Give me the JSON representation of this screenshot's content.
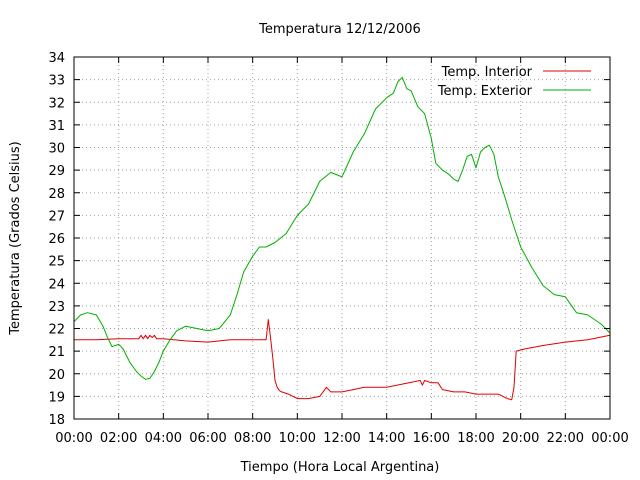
{
  "chart_data": {
    "type": "line",
    "title": "Temperatura 12/12/2006",
    "xlabel": "Tiempo (Hora Local Argentina)",
    "ylabel": "Temperatura (Grados Celsius)",
    "xlim": [
      0,
      24
    ],
    "ylim": [
      18,
      34
    ],
    "x_ticks": [
      0,
      2,
      4,
      6,
      8,
      10,
      12,
      14,
      16,
      18,
      20,
      22,
      24
    ],
    "x_tick_labels": [
      "00:00",
      "02:00",
      "04:00",
      "06:00",
      "08:00",
      "10:00",
      "12:00",
      "14:00",
      "16:00",
      "18:00",
      "20:00",
      "22:00",
      "00:00"
    ],
    "y_ticks": [
      18,
      19,
      20,
      21,
      22,
      23,
      24,
      25,
      26,
      27,
      28,
      29,
      30,
      31,
      32,
      33,
      34
    ],
    "y_tick_labels": [
      "18",
      "19",
      "20",
      "21",
      "22",
      "23",
      "24",
      "25",
      "26",
      "27",
      "28",
      "29",
      "30",
      "31",
      "32",
      "33",
      "34"
    ],
    "grid": true,
    "legend_position": "top-right",
    "series": [
      {
        "name": "Temp. Interior",
        "color": "#e00000",
        "x": [
          0,
          1,
          2,
          2.9,
          3,
          3.1,
          3.2,
          3.3,
          3.4,
          3.5,
          3.6,
          3.7,
          3.8,
          4,
          5,
          6,
          7,
          8,
          8.6,
          8.7,
          8.8,
          8.9,
          9.0,
          9.1,
          9.2,
          9.3,
          9.6,
          10,
          10.5,
          11,
          11.3,
          11.5,
          12,
          12.5,
          13,
          14,
          15,
          15.5,
          15.6,
          15.7,
          16,
          16.3,
          16.5,
          17,
          17.5,
          18,
          19,
          19.4,
          19.6,
          19.7,
          19.8,
          20.2,
          21,
          22,
          23,
          24
        ],
        "y": [
          21.5,
          21.5,
          21.55,
          21.55,
          21.7,
          21.55,
          21.7,
          21.55,
          21.7,
          21.6,
          21.7,
          21.55,
          21.55,
          21.55,
          21.45,
          21.4,
          21.5,
          21.5,
          21.5,
          22.4,
          21.6,
          20.7,
          19.7,
          19.4,
          19.25,
          19.2,
          19.1,
          18.9,
          18.9,
          19.0,
          19.4,
          19.2,
          19.2,
          19.3,
          19.4,
          19.4,
          19.6,
          19.7,
          19.5,
          19.7,
          19.6,
          19.6,
          19.3,
          19.2,
          19.2,
          19.1,
          19.1,
          18.9,
          18.85,
          19.4,
          21.0,
          21.1,
          21.25,
          21.4,
          21.5,
          21.7
        ]
      },
      {
        "name": "Temp. Exterior",
        "color": "#00b000",
        "x": [
          0,
          0.3,
          0.6,
          1.0,
          1.3,
          1.5,
          1.7,
          2.0,
          2.2,
          2.5,
          2.8,
          3.0,
          3.2,
          3.4,
          3.6,
          3.8,
          4.0,
          4.3,
          4.6,
          5.0,
          5.5,
          6.0,
          6.5,
          7.0,
          7.3,
          7.6,
          8.0,
          8.3,
          8.6,
          9.0,
          9.5,
          10.0,
          10.5,
          11.0,
          11.5,
          12.0,
          12.5,
          13.0,
          13.5,
          14.0,
          14.3,
          14.5,
          14.7,
          14.9,
          15.1,
          15.4,
          15.7,
          16.0,
          16.2,
          16.5,
          16.8,
          17.0,
          17.2,
          17.4,
          17.6,
          17.8,
          18.0,
          18.2,
          18.4,
          18.6,
          18.8,
          19.0,
          19.3,
          19.6,
          20.0,
          20.5,
          21.0,
          21.5,
          22.0,
          22.5,
          23.0,
          23.3,
          23.6,
          24.0
        ],
        "y": [
          22.3,
          22.6,
          22.7,
          22.6,
          22.1,
          21.6,
          21.2,
          21.3,
          21.1,
          20.5,
          20.1,
          19.9,
          19.75,
          19.8,
          20.1,
          20.5,
          21.0,
          21.5,
          21.9,
          22.1,
          22.0,
          21.9,
          22.0,
          22.6,
          23.5,
          24.5,
          25.2,
          25.6,
          25.6,
          25.8,
          26.2,
          27.0,
          27.5,
          28.5,
          28.9,
          28.7,
          29.8,
          30.6,
          31.7,
          32.2,
          32.4,
          32.9,
          33.1,
          32.6,
          32.5,
          31.8,
          31.5,
          30.4,
          29.3,
          29.0,
          28.8,
          28.6,
          28.5,
          29.0,
          29.6,
          29.7,
          29.1,
          29.8,
          30.0,
          30.1,
          29.7,
          28.7,
          27.8,
          26.8,
          25.6,
          24.7,
          23.9,
          23.5,
          23.4,
          22.7,
          22.6,
          22.4,
          22.2,
          21.8
        ]
      }
    ]
  }
}
